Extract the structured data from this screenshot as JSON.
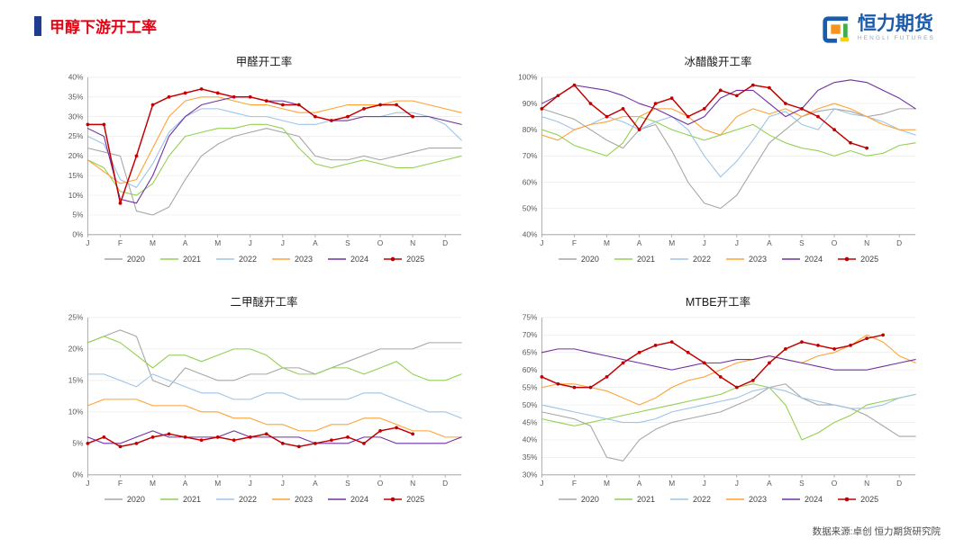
{
  "header": {
    "title": "甲醇下游开工率",
    "logo_text": "恒力期货",
    "logo_subtext": "HENGLI FUTURES"
  },
  "footer": {
    "source": "数据来源:卓创  恒力期货研究院"
  },
  "colors": {
    "title_red": "#e60012",
    "accent_blue": "#1f3c90",
    "logo_blue": "#1a5bab",
    "grid": "#ebebeb",
    "axis": "#9a9a9a"
  },
  "chart_data": [
    {
      "type": "line",
      "title": "甲醛开工率",
      "ylabel": "",
      "ylim": [
        0,
        40
      ],
      "ytick_step": 5,
      "ytick_format": "percent",
      "grid": true,
      "legend_position": "bottom",
      "x_categories": [
        "J",
        "F",
        "M",
        "A",
        "M",
        "J",
        "J",
        "A",
        "S",
        "O",
        "N",
        "D"
      ],
      "x_points_per_month": 2,
      "series": [
        {
          "name": "2020",
          "color": "#a6a6a6",
          "values": [
            22,
            21,
            20,
            6,
            5,
            7,
            14,
            20,
            23,
            25,
            26,
            27,
            26,
            25,
            20,
            19,
            19,
            20,
            19,
            20,
            21,
            22,
            22,
            22
          ]
        },
        {
          "name": "2021",
          "color": "#92d050",
          "values": [
            19,
            17,
            11,
            10,
            13,
            20,
            25,
            26,
            27,
            27,
            28,
            28,
            27,
            22,
            18,
            17,
            18,
            19,
            18,
            17,
            17,
            18,
            19,
            20
          ]
        },
        {
          "name": "2022",
          "color": "#9dc3e6",
          "values": [
            25,
            23,
            14,
            12,
            18,
            26,
            30,
            32,
            32,
            31,
            30,
            30,
            29,
            28,
            28,
            29,
            30,
            30,
            30,
            31,
            31,
            30,
            28,
            24
          ]
        },
        {
          "name": "2023",
          "color": "#ffa133",
          "values": [
            19,
            16,
            13,
            14,
            22,
            30,
            34,
            35,
            35,
            34,
            33,
            33,
            32,
            31,
            31,
            32,
            33,
            33,
            33,
            34,
            34,
            33,
            32,
            31
          ]
        },
        {
          "name": "2024",
          "color": "#7030a0",
          "values": [
            27,
            25,
            9,
            8,
            15,
            25,
            30,
            33,
            34,
            35,
            35,
            34,
            34,
            33,
            30,
            29,
            29,
            30,
            30,
            30,
            30,
            30,
            29,
            28
          ]
        },
        {
          "name": "2025",
          "color": "#c00000",
          "markers": true,
          "values": [
            28,
            28,
            8,
            20,
            33,
            35,
            36,
            37,
            36,
            35,
            35,
            34,
            33,
            33,
            30,
            29,
            30,
            32,
            33,
            33,
            30,
            null,
            null,
            null
          ]
        }
      ]
    },
    {
      "type": "line",
      "title": "冰醋酸开工率",
      "ylabel": "",
      "ylim": [
        40,
        100
      ],
      "ytick_step": 10,
      "ytick_format": "percent",
      "grid": true,
      "legend_position": "bottom",
      "x_categories": [
        "J",
        "F",
        "M",
        "A",
        "M",
        "J",
        "J",
        "A",
        "S",
        "O",
        "N",
        "D"
      ],
      "x_points_per_month": 2,
      "series": [
        {
          "name": "2020",
          "color": "#a6a6a6",
          "values": [
            88,
            86,
            84,
            80,
            76,
            73,
            80,
            82,
            72,
            60,
            52,
            50,
            55,
            65,
            75,
            80,
            85,
            87,
            88,
            87,
            85,
            86,
            88,
            88
          ]
        },
        {
          "name": "2021",
          "color": "#92d050",
          "values": [
            80,
            78,
            74,
            72,
            70,
            75,
            85,
            83,
            80,
            78,
            76,
            78,
            80,
            82,
            78,
            75,
            73,
            72,
            70,
            72,
            70,
            71,
            74,
            75
          ]
        },
        {
          "name": "2022",
          "color": "#9dc3e6",
          "values": [
            85,
            83,
            80,
            82,
            85,
            83,
            80,
            83,
            85,
            80,
            70,
            62,
            68,
            76,
            85,
            87,
            82,
            80,
            88,
            86,
            85,
            83,
            80,
            78
          ]
        },
        {
          "name": "2023",
          "color": "#ffa133",
          "values": [
            78,
            76,
            80,
            82,
            83,
            85,
            85,
            88,
            88,
            85,
            80,
            78,
            85,
            88,
            86,
            88,
            85,
            88,
            90,
            88,
            85,
            82,
            80,
            80
          ]
        },
        {
          "name": "2024",
          "color": "#7030a0",
          "values": [
            90,
            93,
            97,
            96,
            95,
            93,
            90,
            88,
            85,
            82,
            85,
            92,
            95,
            95,
            90,
            85,
            88,
            95,
            98,
            99,
            98,
            95,
            92,
            88
          ]
        },
        {
          "name": "2025",
          "color": "#c00000",
          "markers": true,
          "values": [
            88,
            93,
            97,
            90,
            85,
            88,
            80,
            90,
            92,
            85,
            88,
            95,
            93,
            97,
            96,
            90,
            88,
            85,
            80,
            75,
            73,
            null,
            null,
            null
          ]
        }
      ]
    },
    {
      "type": "line",
      "title": "二甲醚开工率",
      "ylabel": "",
      "ylim": [
        0,
        25
      ],
      "ytick_step": 5,
      "ytick_format": "percent",
      "grid": true,
      "legend_position": "bottom",
      "x_categories": [
        "J",
        "F",
        "M",
        "A",
        "M",
        "J",
        "J",
        "A",
        "S",
        "O",
        "N",
        "D"
      ],
      "x_points_per_month": 2,
      "series": [
        {
          "name": "2020",
          "color": "#a6a6a6",
          "values": [
            21,
            22,
            23,
            22,
            15,
            14,
            17,
            16,
            15,
            15,
            16,
            16,
            17,
            17,
            16,
            17,
            18,
            19,
            20,
            20,
            20,
            21,
            21,
            21
          ]
        },
        {
          "name": "2021",
          "color": "#92d050",
          "values": [
            21,
            22,
            21,
            19,
            17,
            19,
            19,
            18,
            19,
            20,
            20,
            19,
            17,
            16,
            16,
            17,
            17,
            16,
            17,
            18,
            16,
            15,
            15,
            16
          ]
        },
        {
          "name": "2022",
          "color": "#9dc3e6",
          "values": [
            16,
            16,
            15,
            14,
            16,
            15,
            14,
            13,
            13,
            12,
            12,
            13,
            13,
            12,
            12,
            12,
            12,
            13,
            13,
            12,
            11,
            10,
            10,
            9
          ]
        },
        {
          "name": "2023",
          "color": "#ffa133",
          "values": [
            11,
            12,
            12,
            12,
            11,
            11,
            11,
            10,
            10,
            9,
            9,
            8,
            8,
            7,
            7,
            8,
            8,
            9,
            9,
            8,
            7,
            7,
            6,
            6
          ]
        },
        {
          "name": "2024",
          "color": "#7030a0",
          "values": [
            6,
            5,
            5,
            6,
            7,
            6,
            6,
            6,
            6,
            7,
            6,
            6,
            6,
            6,
            5,
            5,
            5,
            6,
            6,
            5,
            5,
            5,
            5,
            6
          ]
        },
        {
          "name": "2025",
          "color": "#c00000",
          "markers": true,
          "values": [
            5,
            6,
            4.5,
            5,
            6,
            6.5,
            6,
            5.5,
            6,
            5.5,
            6,
            6.5,
            5,
            4.5,
            5,
            5.5,
            6,
            5,
            7,
            7.5,
            6.5,
            null,
            null,
            null
          ]
        }
      ]
    },
    {
      "type": "line",
      "title": "MTBE开工率",
      "ylabel": "",
      "ylim": [
        30,
        75
      ],
      "ytick_step": 5,
      "ytick_format": "percent",
      "grid": true,
      "legend_position": "bottom",
      "x_categories": [
        "J",
        "F",
        "M",
        "A",
        "M",
        "J",
        "J",
        "A",
        "S",
        "O",
        "N",
        "D"
      ],
      "x_points_per_month": 2,
      "series": [
        {
          "name": "2020",
          "color": "#a6a6a6",
          "values": [
            48,
            47,
            46,
            44,
            35,
            34,
            40,
            43,
            45,
            46,
            47,
            48,
            50,
            52,
            55,
            56,
            52,
            50,
            50,
            49,
            47,
            44,
            41,
            41
          ]
        },
        {
          "name": "2021",
          "color": "#92d050",
          "values": [
            46,
            45,
            44,
            45,
            46,
            47,
            48,
            49,
            50,
            51,
            52,
            53,
            55,
            56,
            55,
            50,
            40,
            42,
            45,
            47,
            50,
            51,
            52,
            53
          ]
        },
        {
          "name": "2022",
          "color": "#9dc3e6",
          "values": [
            50,
            49,
            48,
            47,
            46,
            45,
            45,
            46,
            48,
            49,
            50,
            51,
            52,
            54,
            55,
            54,
            52,
            51,
            50,
            49,
            49,
            50,
            52,
            53
          ]
        },
        {
          "name": "2023",
          "color": "#ffa133",
          "values": [
            55,
            56,
            56,
            55,
            54,
            52,
            50,
            52,
            55,
            57,
            58,
            60,
            62,
            63,
            64,
            63,
            62,
            64,
            65,
            67,
            70,
            68,
            64,
            62
          ]
        },
        {
          "name": "2024",
          "color": "#7030a0",
          "values": [
            65,
            66,
            66,
            65,
            64,
            63,
            62,
            61,
            60,
            61,
            62,
            62,
            63,
            63,
            64,
            63,
            62,
            61,
            60,
            60,
            60,
            61,
            62,
            63
          ]
        },
        {
          "name": "2025",
          "color": "#c00000",
          "markers": true,
          "values": [
            58,
            56,
            55,
            55,
            58,
            62,
            65,
            67,
            68,
            65,
            62,
            58,
            55,
            57,
            62,
            66,
            68,
            67,
            66,
            67,
            69,
            70,
            null,
            null
          ]
        }
      ]
    }
  ]
}
